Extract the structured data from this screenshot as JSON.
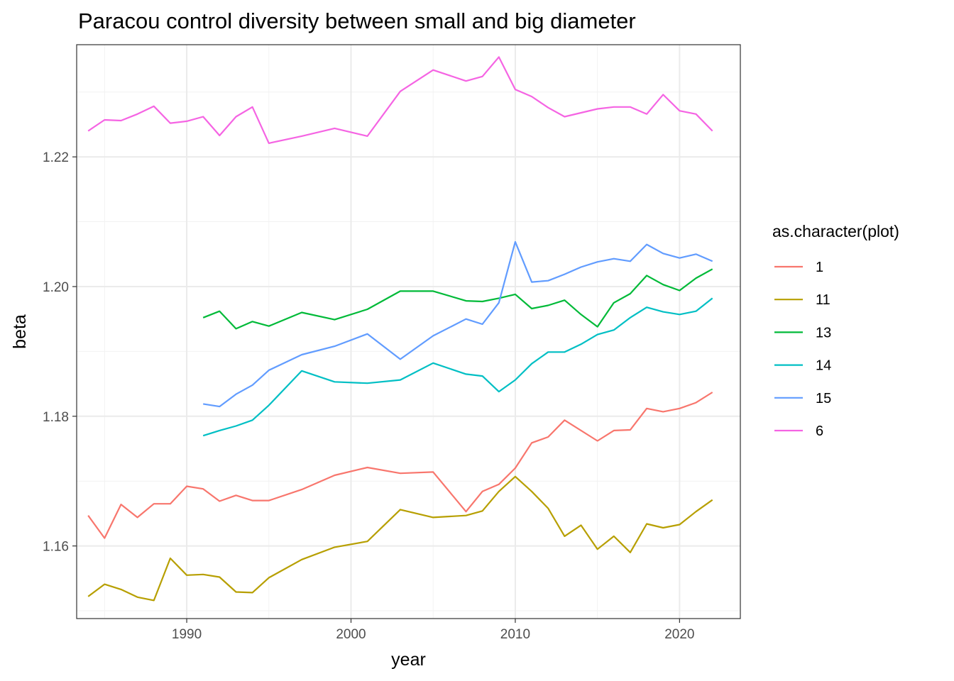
{
  "chart_data": {
    "type": "line",
    "title": "Paracou control diversity between small and big diameter",
    "xlabel": "year",
    "ylabel": "beta",
    "xlim": [
      1983.3,
      2023.7
    ],
    "ylim": [
      1.1488,
      1.2373
    ],
    "x_ticks": [
      1990,
      2000,
      2010,
      2020
    ],
    "y_ticks": [
      1.16,
      1.18,
      1.2,
      1.22
    ],
    "x_tick_labels": [
      "1990",
      "2000",
      "2010",
      "2020"
    ],
    "y_tick_labels": [
      "1.16",
      "1.18",
      "1.20",
      "1.22"
    ],
    "grid": true,
    "legend": {
      "title": "as.character(plot)",
      "placement": "right"
    },
    "series": [
      {
        "name": "1",
        "color": "#F8766D",
        "points": [
          [
            1984,
            1.1647
          ],
          [
            1985,
            1.1612
          ],
          [
            1986,
            1.1664
          ],
          [
            1987,
            1.1644
          ],
          [
            1988,
            1.1665
          ],
          [
            1989,
            1.1665
          ],
          [
            1990,
            1.1692
          ],
          [
            1991,
            1.1688
          ],
          [
            1992,
            1.1669
          ],
          [
            1993,
            1.1678
          ],
          [
            1994,
            1.167
          ],
          [
            1995,
            1.167
          ],
          [
            1997,
            1.1687
          ],
          [
            1999,
            1.1709
          ],
          [
            2001,
            1.1721
          ],
          [
            2003,
            1.1712
          ],
          [
            2005,
            1.1714
          ],
          [
            2007,
            1.1653
          ],
          [
            2008,
            1.1684
          ],
          [
            2009,
            1.1695
          ],
          [
            2010,
            1.172
          ],
          [
            2011,
            1.1759
          ],
          [
            2012,
            1.1768
          ],
          [
            2013,
            1.1794
          ],
          [
            2015,
            1.1762
          ],
          [
            2016,
            1.1778
          ],
          [
            2017,
            1.1779
          ],
          [
            2018,
            1.1812
          ],
          [
            2019,
            1.1807
          ],
          [
            2020,
            1.1812
          ],
          [
            2021,
            1.1821
          ],
          [
            2022,
            1.1837
          ]
        ]
      },
      {
        "name": "11",
        "color": "#B79F00",
        "points": [
          [
            1984,
            1.1522
          ],
          [
            1985,
            1.1541
          ],
          [
            1986,
            1.1533
          ],
          [
            1987,
            1.1521
          ],
          [
            1988,
            1.1516
          ],
          [
            1989,
            1.1581
          ],
          [
            1990,
            1.1555
          ],
          [
            1991,
            1.1556
          ],
          [
            1992,
            1.1552
          ],
          [
            1993,
            1.1529
          ],
          [
            1994,
            1.1528
          ],
          [
            1995,
            1.1551
          ],
          [
            1997,
            1.1579
          ],
          [
            1999,
            1.1598
          ],
          [
            2001,
            1.1607
          ],
          [
            2003,
            1.1656
          ],
          [
            2005,
            1.1644
          ],
          [
            2007,
            1.1647
          ],
          [
            2008,
            1.1654
          ],
          [
            2009,
            1.1684
          ],
          [
            2010,
            1.1707
          ],
          [
            2011,
            1.1684
          ],
          [
            2012,
            1.1658
          ],
          [
            2013,
            1.1615
          ],
          [
            2014,
            1.1632
          ],
          [
            2015,
            1.1595
          ],
          [
            2016,
            1.1615
          ],
          [
            2017,
            1.159
          ],
          [
            2018,
            1.1634
          ],
          [
            2019,
            1.1628
          ],
          [
            2020,
            1.1633
          ],
          [
            2021,
            1.1653
          ],
          [
            2022,
            1.1671
          ]
        ]
      },
      {
        "name": "13",
        "color": "#00BA38",
        "points": [
          [
            1991,
            1.1952
          ],
          [
            1992,
            1.1962
          ],
          [
            1993,
            1.1935
          ],
          [
            1994,
            1.1946
          ],
          [
            1995,
            1.1939
          ],
          [
            1997,
            1.196
          ],
          [
            1999,
            1.1949
          ],
          [
            2001,
            1.1965
          ],
          [
            2003,
            1.1993
          ],
          [
            2005,
            1.1993
          ],
          [
            2007,
            1.1978
          ],
          [
            2008,
            1.1977
          ],
          [
            2009,
            1.1982
          ],
          [
            2010,
            1.1988
          ],
          [
            2011,
            1.1966
          ],
          [
            2012,
            1.1971
          ],
          [
            2013,
            1.1979
          ],
          [
            2014,
            1.1957
          ],
          [
            2015,
            1.1938
          ],
          [
            2016,
            1.1975
          ],
          [
            2017,
            1.1989
          ],
          [
            2018,
            1.2017
          ],
          [
            2019,
            1.2003
          ],
          [
            2020,
            1.1994
          ],
          [
            2021,
            1.2013
          ],
          [
            2022,
            1.2027
          ]
        ]
      },
      {
        "name": "14",
        "color": "#00BFC4",
        "points": [
          [
            1991,
            1.177
          ],
          [
            1992,
            1.1778
          ],
          [
            1993,
            1.1785
          ],
          [
            1994,
            1.1794
          ],
          [
            1995,
            1.1817
          ],
          [
            1997,
            1.187
          ],
          [
            1999,
            1.1853
          ],
          [
            2001,
            1.1851
          ],
          [
            2003,
            1.1856
          ],
          [
            2005,
            1.1882
          ],
          [
            2007,
            1.1865
          ],
          [
            2008,
            1.1862
          ],
          [
            2009,
            1.1838
          ],
          [
            2010,
            1.1856
          ],
          [
            2011,
            1.1881
          ],
          [
            2012,
            1.1899
          ],
          [
            2013,
            1.1899
          ],
          [
            2014,
            1.1911
          ],
          [
            2015,
            1.1926
          ],
          [
            2016,
            1.1933
          ],
          [
            2017,
            1.1952
          ],
          [
            2018,
            1.1968
          ],
          [
            2019,
            1.1961
          ],
          [
            2020,
            1.1957
          ],
          [
            2021,
            1.1962
          ],
          [
            2022,
            1.1982
          ]
        ]
      },
      {
        "name": "15",
        "color": "#619CFF",
        "points": [
          [
            1991,
            1.1819
          ],
          [
            1992,
            1.1815
          ],
          [
            1993,
            1.1834
          ],
          [
            1994,
            1.1848
          ],
          [
            1995,
            1.1871
          ],
          [
            1997,
            1.1895
          ],
          [
            1999,
            1.1908
          ],
          [
            2001,
            1.1927
          ],
          [
            2003,
            1.1888
          ],
          [
            2005,
            1.1924
          ],
          [
            2007,
            1.195
          ],
          [
            2008,
            1.1942
          ],
          [
            2009,
            1.1975
          ],
          [
            2010,
            1.2069
          ],
          [
            2011,
            1.2007
          ],
          [
            2012,
            1.2009
          ],
          [
            2013,
            1.2019
          ],
          [
            2014,
            1.203
          ],
          [
            2015,
            1.2038
          ],
          [
            2016,
            1.2043
          ],
          [
            2017,
            1.2039
          ],
          [
            2018,
            1.2065
          ],
          [
            2019,
            1.2051
          ],
          [
            2020,
            1.2044
          ],
          [
            2021,
            1.205
          ],
          [
            2022,
            1.2039
          ]
        ]
      },
      {
        "name": "6",
        "color": "#F564E3",
        "points": [
          [
            1984,
            1.224
          ],
          [
            1985,
            1.2257
          ],
          [
            1986,
            1.2256
          ],
          [
            1987,
            1.2266
          ],
          [
            1988,
            1.2278
          ],
          [
            1989,
            1.2252
          ],
          [
            1990,
            1.2255
          ],
          [
            1991,
            1.2262
          ],
          [
            1992,
            1.2233
          ],
          [
            1993,
            1.2262
          ],
          [
            1994,
            1.2277
          ],
          [
            1995,
            1.2221
          ],
          [
            1997,
            1.2232
          ],
          [
            1999,
            1.2244
          ],
          [
            2001,
            1.2232
          ],
          [
            2003,
            1.2301
          ],
          [
            2005,
            1.2334
          ],
          [
            2007,
            1.2317
          ],
          [
            2008,
            1.2324
          ],
          [
            2009,
            1.2354
          ],
          [
            2010,
            1.2304
          ],
          [
            2011,
            1.2293
          ],
          [
            2012,
            1.2276
          ],
          [
            2013,
            1.2262
          ],
          [
            2014,
            1.2268
          ],
          [
            2015,
            1.2274
          ],
          [
            2016,
            1.2277
          ],
          [
            2017,
            1.2277
          ],
          [
            2018,
            1.2266
          ],
          [
            2019,
            1.2296
          ],
          [
            2020,
            1.2271
          ],
          [
            2021,
            1.2266
          ],
          [
            2022,
            1.224
          ]
        ]
      }
    ]
  }
}
